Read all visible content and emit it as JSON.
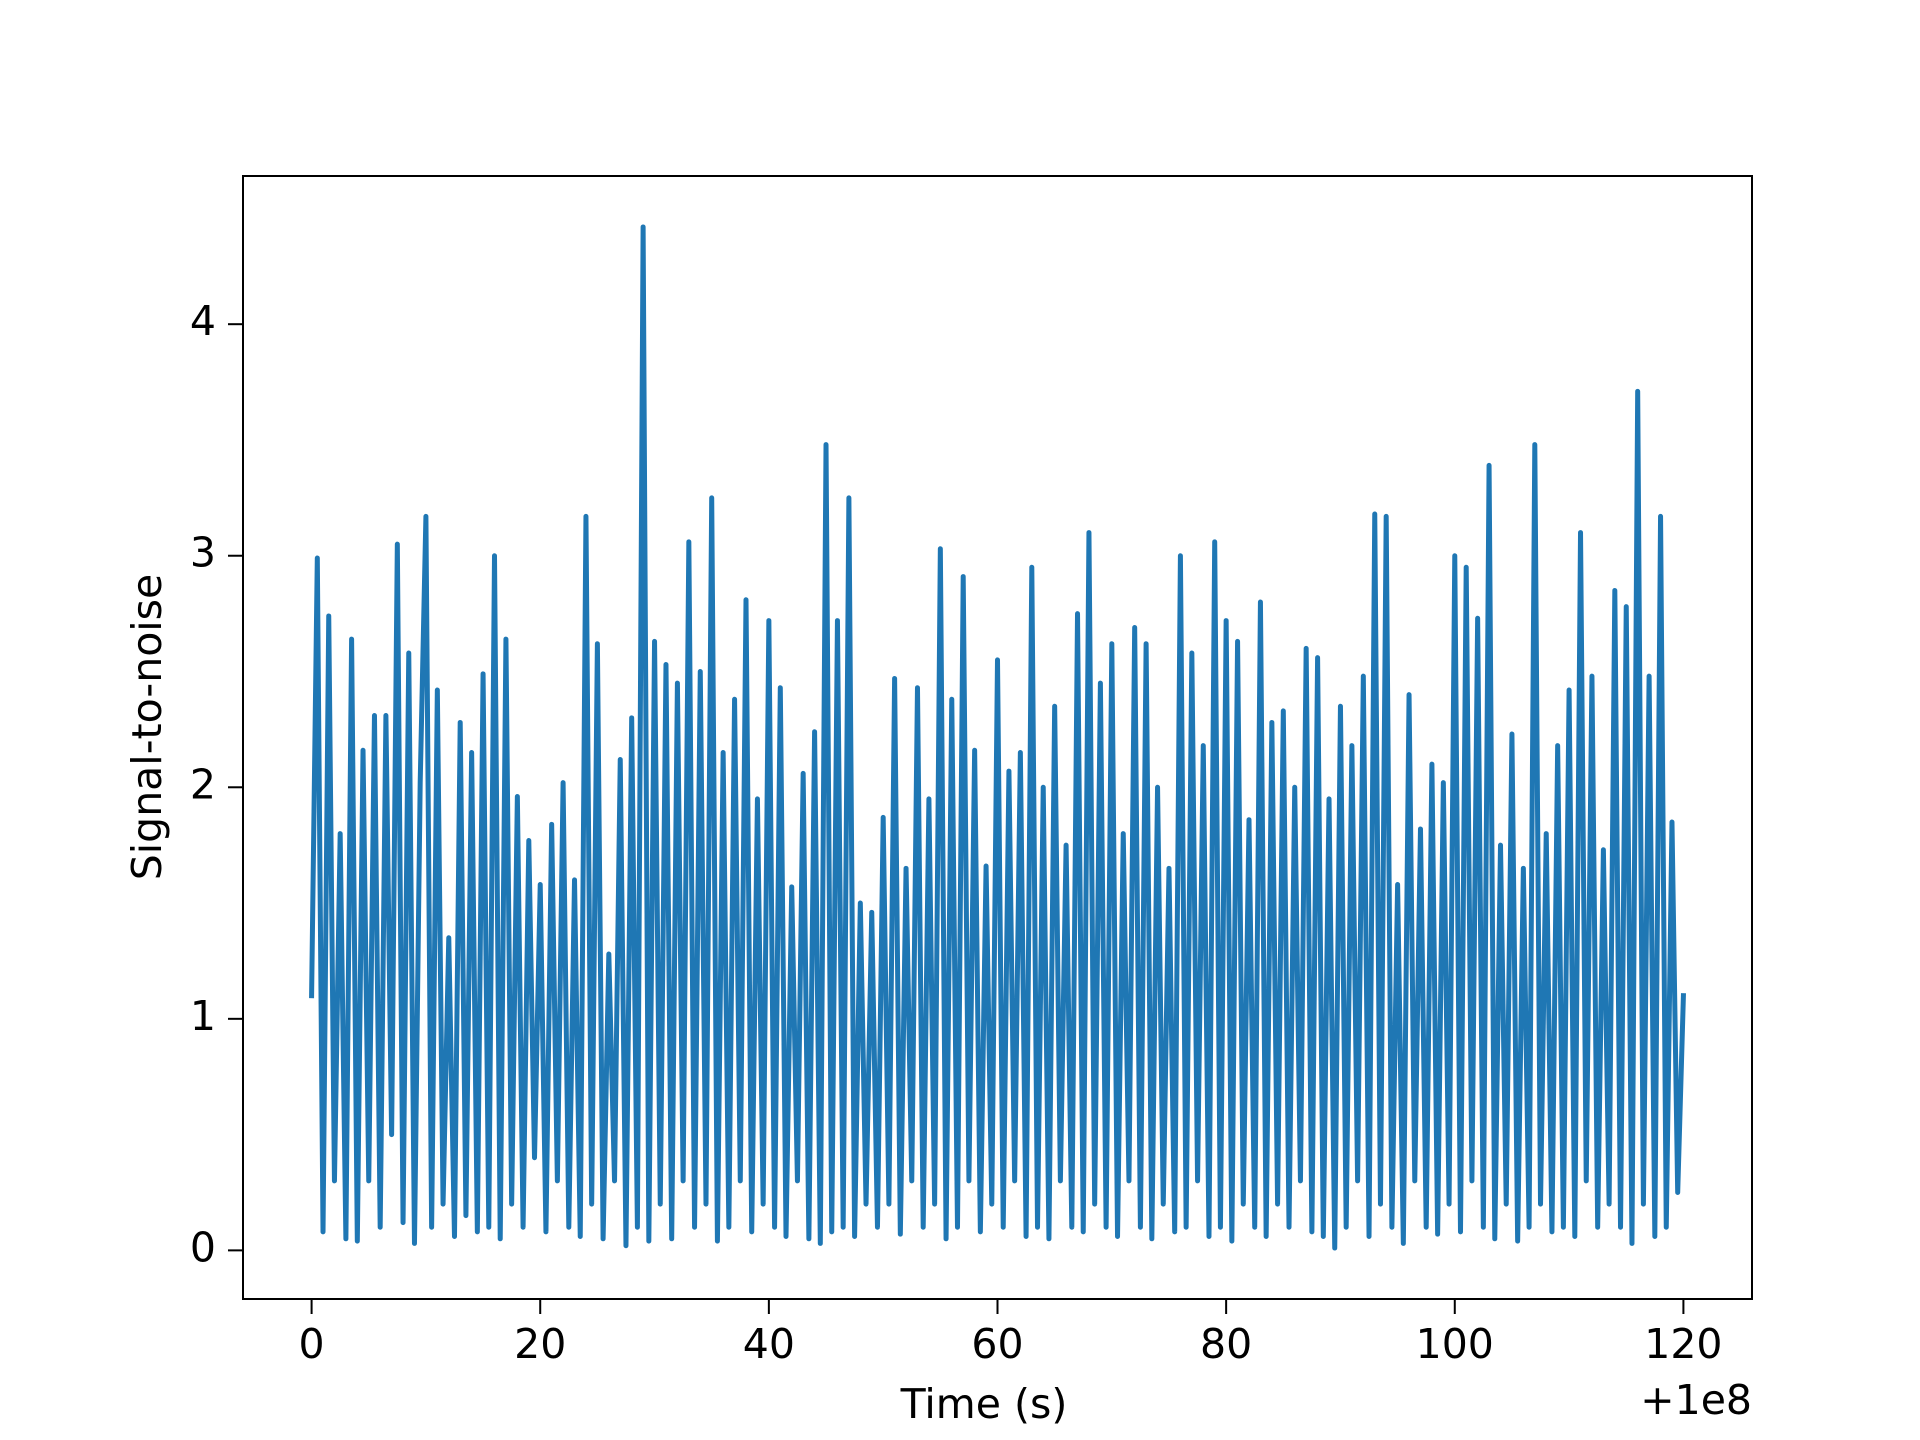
{
  "chart_data": {
    "type": "line",
    "xlabel": "Time (s)",
    "ylabel": "Signal-to-noise",
    "x_offset_label": "+1e8",
    "xlim": [
      -6,
      126
    ],
    "ylim": [
      -0.21,
      4.64
    ],
    "xticks": [
      0,
      20,
      40,
      60,
      80,
      100,
      120
    ],
    "yticks": [
      0,
      1,
      2,
      3,
      4
    ],
    "grid": false,
    "x": [
      0,
      0.5,
      1,
      1.5,
      2,
      2.5,
      3,
      3.5,
      4,
      4.5,
      5,
      5.5,
      6,
      6.5,
      7,
      7.5,
      8,
      8.5,
      9,
      9.5,
      10,
      10.5,
      11,
      11.5,
      12,
      12.5,
      13,
      13.5,
      14,
      14.5,
      15,
      15.5,
      16,
      16.5,
      17,
      17.5,
      18,
      18.5,
      19,
      19.5,
      20,
      20.5,
      21,
      21.5,
      22,
      22.5,
      23,
      23.5,
      24,
      24.5,
      25,
      25.5,
      26,
      26.5,
      27,
      27.5,
      28,
      28.5,
      29,
      29.5,
      30,
      30.5,
      31,
      31.5,
      32,
      32.5,
      33,
      33.5,
      34,
      34.5,
      35,
      35.5,
      36,
      36.5,
      37,
      37.5,
      38,
      38.5,
      39,
      39.5,
      40,
      40.5,
      41,
      41.5,
      42,
      42.5,
      43,
      43.5,
      44,
      44.5,
      45,
      45.5,
      46,
      46.5,
      47,
      47.5,
      48,
      48.5,
      49,
      49.5,
      50,
      50.5,
      51,
      51.5,
      52,
      52.5,
      53,
      53.5,
      54,
      54.5,
      55,
      55.5,
      56,
      56.5,
      57,
      57.5,
      58,
      58.5,
      59,
      59.5,
      60,
      60.5,
      61,
      61.5,
      62,
      62.5,
      63,
      63.5,
      64,
      64.5,
      65,
      65.5,
      66,
      66.5,
      67,
      67.5,
      68,
      68.5,
      69,
      69.5,
      70,
      70.5,
      71,
      71.5,
      72,
      72.5,
      73,
      73.5,
      74,
      74.5,
      75,
      75.5,
      76,
      76.5,
      77,
      77.5,
      78,
      78.5,
      79,
      79.5,
      80,
      80.5,
      81,
      81.5,
      82,
      82.5,
      83,
      83.5,
      84,
      84.5,
      85,
      85.5,
      86,
      86.5,
      87,
      87.5,
      88,
      88.5,
      89,
      89.5,
      90,
      90.5,
      91,
      91.5,
      92,
      92.5,
      93,
      93.5,
      94,
      94.5,
      95,
      95.5,
      96,
      96.5,
      97,
      97.5,
      98,
      98.5,
      99,
      99.5,
      100,
      100.5,
      101,
      101.5,
      102,
      102.5,
      103,
      103.5,
      104,
      104.5,
      105,
      105.5,
      106,
      106.5,
      107,
      107.5,
      108,
      108.5,
      109,
      109.5,
      110,
      110.5,
      111,
      111.5,
      112,
      112.5,
      113,
      113.5,
      114,
      114.5,
      115,
      115.5,
      116,
      116.5,
      117,
      117.5,
      118,
      118.5,
      119,
      119.5,
      120
    ],
    "series": [
      {
        "color": "#1f77b4",
        "values": [
          1.1,
          2.99,
          0.08,
          2.74,
          0.3,
          1.8,
          0.05,
          2.64,
          0.04,
          2.16,
          0.3,
          2.31,
          0.1,
          2.31,
          0.5,
          3.05,
          0.12,
          2.58,
          0.03,
          2.02,
          3.17,
          0.1,
          2.42,
          0.2,
          1.35,
          0.06,
          2.28,
          0.15,
          2.15,
          0.08,
          2.49,
          0.1,
          3.0,
          0.05,
          2.64,
          0.2,
          1.96,
          0.1,
          1.77,
          0.4,
          1.58,
          0.08,
          1.84,
          0.3,
          2.02,
          0.1,
          1.6,
          0.06,
          3.17,
          0.2,
          2.62,
          0.05,
          1.28,
          0.3,
          2.12,
          0.02,
          2.3,
          0.1,
          4.42,
          0.04,
          2.63,
          0.2,
          2.53,
          0.05,
          2.45,
          0.3,
          3.06,
          0.1,
          2.5,
          0.2,
          3.25,
          0.04,
          2.15,
          0.1,
          2.38,
          0.3,
          2.81,
          0.08,
          1.95,
          0.2,
          2.72,
          0.1,
          2.43,
          0.06,
          1.57,
          0.3,
          2.06,
          0.05,
          2.24,
          0.03,
          3.48,
          0.08,
          2.72,
          0.1,
          3.25,
          0.06,
          1.5,
          0.2,
          1.46,
          0.1,
          1.87,
          0.2,
          2.47,
          0.07,
          1.65,
          0.3,
          2.43,
          0.1,
          1.95,
          0.2,
          3.03,
          0.05,
          2.38,
          0.1,
          2.91,
          0.3,
          2.16,
          0.08,
          1.66,
          0.2,
          2.55,
          0.1,
          2.07,
          0.3,
          2.15,
          0.06,
          2.95,
          0.1,
          2.0,
          0.05,
          2.35,
          0.3,
          1.75,
          0.1,
          2.75,
          0.08,
          3.1,
          0.2,
          2.45,
          0.1,
          2.62,
          0.06,
          1.8,
          0.3,
          2.69,
          0.1,
          2.62,
          0.05,
          2.0,
          0.2,
          1.65,
          0.08,
          3.0,
          0.1,
          2.58,
          0.3,
          2.18,
          0.06,
          3.06,
          0.1,
          2.72,
          0.04,
          2.63,
          0.2,
          1.86,
          0.1,
          2.8,
          0.06,
          2.28,
          0.2,
          2.33,
          0.1,
          2.0,
          0.3,
          2.6,
          0.08,
          2.56,
          0.06,
          1.95,
          0.01,
          2.35,
          0.1,
          2.18,
          0.3,
          2.48,
          0.06,
          3.18,
          0.2,
          3.17,
          0.1,
          1.58,
          0.03,
          2.4,
          0.3,
          1.82,
          0.1,
          2.1,
          0.07,
          2.02,
          0.2,
          3.0,
          0.08,
          2.95,
          0.3,
          2.73,
          0.1,
          3.39,
          0.05,
          1.75,
          0.2,
          2.23,
          0.04,
          1.65,
          0.1,
          3.48,
          0.2,
          1.8,
          0.08,
          2.18,
          0.1,
          2.42,
          0.06,
          3.1,
          0.3,
          2.48,
          0.1,
          1.73,
          0.2,
          2.85,
          0.1,
          2.78,
          0.03,
          3.71,
          0.2,
          2.48,
          0.06,
          3.17,
          0.1,
          1.85,
          0.25,
          1.1
        ]
      }
    ]
  }
}
